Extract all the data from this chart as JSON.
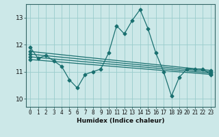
{
  "xlabel": "Humidex (Indice chaleur)",
  "bg_color": "#cce8e8",
  "grid_color": "#99cccc",
  "line_color": "#1a7070",
  "x_ticks": [
    0,
    1,
    2,
    3,
    4,
    5,
    6,
    7,
    8,
    9,
    10,
    11,
    12,
    13,
    14,
    15,
    16,
    17,
    18,
    19,
    20,
    21,
    22,
    23
  ],
  "y_ticks": [
    10,
    11,
    12,
    13
  ],
  "ylim": [
    9.7,
    13.5
  ],
  "xlim": [
    -0.5,
    23.5
  ],
  "series1_x": [
    0,
    1,
    2,
    3,
    4,
    5,
    6,
    7,
    8,
    9,
    10,
    11,
    12,
    13,
    14,
    15,
    16,
    17,
    18,
    19,
    20,
    21,
    22,
    23
  ],
  "series1_y": [
    11.9,
    11.5,
    11.6,
    11.4,
    11.2,
    10.7,
    10.4,
    10.9,
    11.0,
    11.1,
    11.7,
    12.7,
    12.4,
    12.9,
    13.3,
    12.6,
    11.7,
    11.0,
    10.1,
    10.8,
    11.1,
    11.1,
    11.1,
    10.9
  ],
  "reg_lines": [
    {
      "x": [
        0,
        23
      ],
      "y": [
        11.75,
        11.05
      ]
    },
    {
      "x": [
        0,
        23
      ],
      "y": [
        11.65,
        11.0
      ]
    },
    {
      "x": [
        0,
        23
      ],
      "y": [
        11.55,
        10.95
      ]
    },
    {
      "x": [
        0,
        23
      ],
      "y": [
        11.45,
        10.9
      ]
    }
  ],
  "tick_fontsize": 5.5,
  "label_fontsize": 6.5,
  "marker_size": 2.5,
  "line_width": 0.9
}
